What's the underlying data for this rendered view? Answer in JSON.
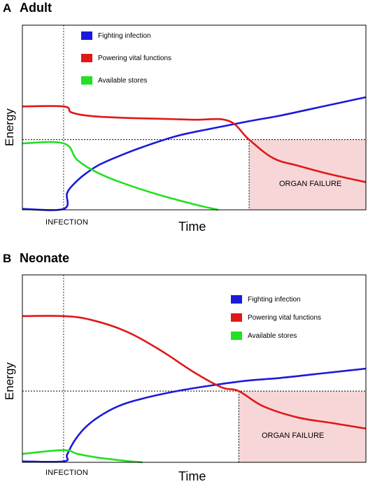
{
  "chart_data": [
    {
      "type": "line",
      "panel_letter": "A",
      "title": "Adult",
      "xlabel": "Time",
      "ylabel": "Energy",
      "xlim": [
        0,
        10
      ],
      "ylim": [
        0,
        10
      ],
      "event": {
        "label": "INFECTION",
        "x": 1.2
      },
      "threshold": 3.8,
      "region": {
        "label": "ORGAN FAILURE",
        "x_start": 6.6,
        "color": "#f7d6d8"
      },
      "legend_position": "top-left",
      "series": [
        {
          "name": "Fighting infection",
          "color": "#1a1adc",
          "x": [
            0,
            1.2,
            1.3,
            1.5,
            1.8,
            2.2,
            2.8,
            3.5,
            4.5,
            5.5,
            6.6,
            7.5,
            8.5,
            9.5,
            10
          ],
          "y": [
            0.05,
            0.05,
            0.9,
            1.4,
            1.9,
            2.4,
            2.9,
            3.4,
            4.0,
            4.4,
            4.8,
            5.1,
            5.5,
            5.9,
            6.1
          ]
        },
        {
          "name": "Powering vital functions",
          "color": "#e01818",
          "x": [
            0,
            1.2,
            1.4,
            1.7,
            2.2,
            3.0,
            4.0,
            5.0,
            6.0,
            6.6,
            7.3,
            8.0,
            8.8,
            9.5,
            10
          ],
          "y": [
            5.6,
            5.6,
            5.3,
            5.15,
            5.05,
            4.98,
            4.93,
            4.88,
            4.82,
            3.8,
            2.8,
            2.4,
            2.0,
            1.7,
            1.5
          ]
        },
        {
          "name": "Available stores",
          "color": "#22e022",
          "x": [
            0,
            1.2,
            1.6,
            2.2,
            3.0,
            4.0,
            5.0,
            5.7
          ],
          "y": [
            3.6,
            3.6,
            2.7,
            2.0,
            1.4,
            0.8,
            0.3,
            0.0
          ]
        }
      ]
    },
    {
      "type": "line",
      "panel_letter": "B",
      "title": "Neonate",
      "xlabel": "Time",
      "ylabel": "Energy",
      "xlim": [
        0,
        10
      ],
      "ylim": [
        0,
        10
      ],
      "event": {
        "label": "INFECTION",
        "x": 1.2
      },
      "threshold": 3.8,
      "region": {
        "label": "ORGAN FAILURE",
        "x_start": 6.3,
        "color": "#f7d6d8"
      },
      "legend_position": "top-right",
      "series": [
        {
          "name": "Fighting infection",
          "color": "#1a1adc",
          "x": [
            0,
            1.2,
            1.3,
            1.5,
            1.8,
            2.2,
            2.8,
            3.5,
            4.5,
            5.5,
            6.5,
            7.5,
            8.5,
            9.5,
            10
          ],
          "y": [
            0.05,
            0.05,
            0.4,
            1.1,
            1.8,
            2.4,
            3.0,
            3.4,
            3.8,
            4.1,
            4.35,
            4.5,
            4.7,
            4.9,
            5.0
          ]
        },
        {
          "name": "Powering vital functions",
          "color": "#e01818",
          "x": [
            0,
            1.2,
            2.0,
            3.0,
            4.0,
            5.0,
            5.8,
            6.3,
            7.0,
            8.0,
            9.0,
            10
          ],
          "y": [
            7.8,
            7.8,
            7.6,
            7.0,
            6.0,
            4.8,
            4.0,
            3.8,
            3.0,
            2.4,
            2.1,
            1.8
          ]
        },
        {
          "name": "Available stores",
          "color": "#22e022",
          "x": [
            0,
            1.2,
            1.6,
            2.2,
            3.0,
            3.5
          ],
          "y": [
            0.45,
            0.65,
            0.45,
            0.25,
            0.08,
            0.0
          ]
        }
      ]
    }
  ]
}
